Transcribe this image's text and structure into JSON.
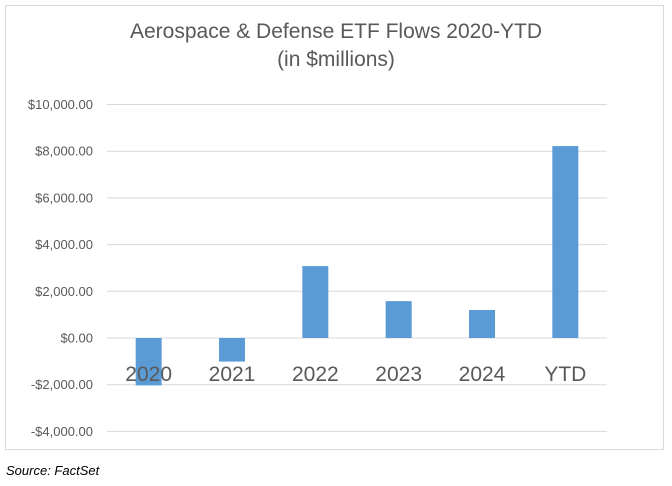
{
  "chart_data": {
    "type": "bar",
    "title": "Aerospace & Defense ETF Flows 2020-YTD",
    "subtitle": "(in $millions)",
    "categories": [
      "2020",
      "2021",
      "2022",
      "2023",
      "2024",
      "YTD"
    ],
    "values": [
      -2030,
      -1010,
      3080,
      1580,
      1200,
      8220
    ],
    "ylim": [
      -4000,
      10000
    ],
    "yticks": [
      10000,
      8000,
      6000,
      4000,
      2000,
      0,
      -2000,
      -4000
    ],
    "ytick_labels": [
      "$10,000.00",
      "$8,000.00",
      "$6,000.00",
      "$4,000.00",
      "$2,000.00",
      "$0.00",
      "-$2,000.00",
      "-$4,000.00"
    ],
    "xlabel": "",
    "ylabel": "",
    "grid": true,
    "bar_color": "#5b9bd5",
    "source": "Source: FactSet"
  }
}
